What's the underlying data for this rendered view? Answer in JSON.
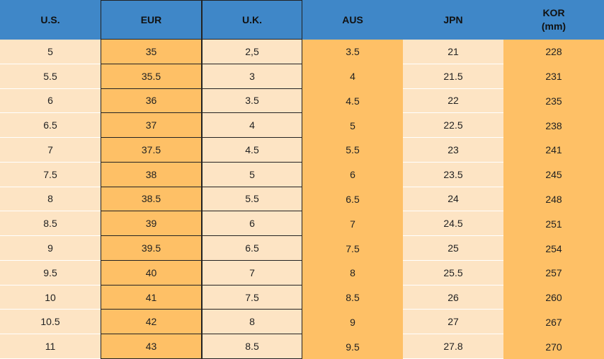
{
  "table": {
    "header": [
      [
        "U.S."
      ],
      [
        "EUR"
      ],
      [
        "U.K."
      ],
      [
        "AUS"
      ],
      [
        "JPN"
      ],
      [
        "KOR",
        "(mm)"
      ]
    ],
    "rows": [
      [
        "5",
        "35",
        "2,5",
        "3.5",
        "21",
        "228"
      ],
      [
        "5.5",
        "35.5",
        "3",
        "4",
        "21.5",
        "231"
      ],
      [
        "6",
        "36",
        "3.5",
        "4.5",
        "22",
        "235"
      ],
      [
        "6.5",
        "37",
        "4",
        "5",
        "22.5",
        "238"
      ],
      [
        "7",
        "37.5",
        "4.5",
        "5.5",
        "23",
        "241"
      ],
      [
        "7.5",
        "38",
        "5",
        "6",
        "23.5",
        "245"
      ],
      [
        "8",
        "38.5",
        "5.5",
        "6.5",
        "24",
        "248"
      ],
      [
        "8.5",
        "39",
        "6",
        "7",
        "24.5",
        "251"
      ],
      [
        "9",
        "39.5",
        "6.5",
        "7.5",
        "25",
        "254"
      ],
      [
        "9.5",
        "40",
        "7",
        "8",
        "25.5",
        "257"
      ],
      [
        "10",
        "41",
        "7.5",
        "8.5",
        "26",
        "260"
      ],
      [
        "10.5",
        "42",
        "8",
        "9",
        "27",
        "267"
      ],
      [
        "11",
        "43",
        "8.5",
        "9.5",
        "27.8",
        "270"
      ]
    ]
  }
}
